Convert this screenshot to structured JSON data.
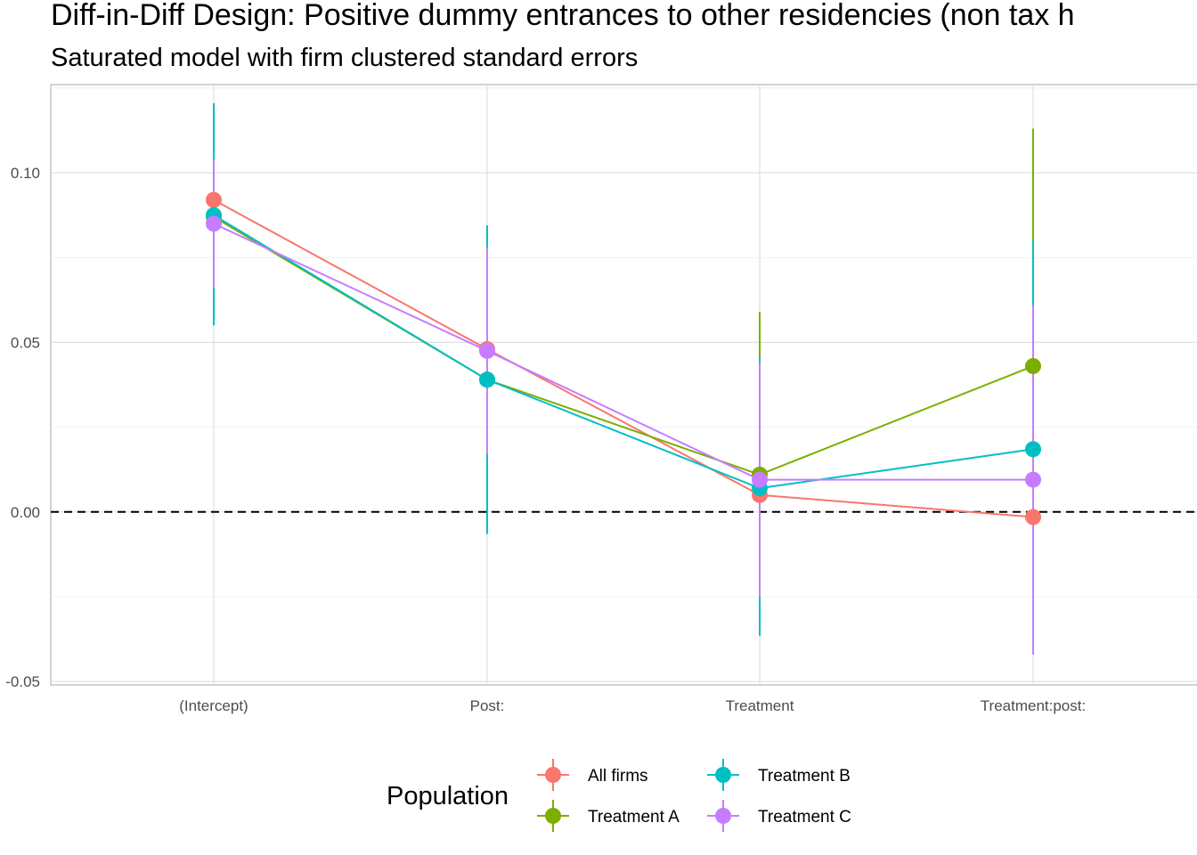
{
  "chart_data": {
    "type": "line",
    "title": "Diff-in-Diff Design: Positive dummy entrances to other residencies (non tax h",
    "subtitle": "Saturated model with firm clustered standard errors",
    "xlabel": "",
    "ylabel": "",
    "categories": [
      "(Intercept)",
      "Post:",
      "Treatment",
      "Treatment:post:"
    ],
    "y_ticks": [
      -0.05,
      0.0,
      0.05,
      0.1
    ],
    "y_tick_labels": [
      "-0.05",
      "0.00",
      "0.05",
      "0.10"
    ],
    "ylim": [
      -0.051,
      0.126
    ],
    "reference_line": {
      "y": 0,
      "style": "dashed",
      "color": "#000000"
    },
    "grid": true,
    "legend": {
      "title": "Population",
      "position": "bottom"
    },
    "series": [
      {
        "name": "All firms",
        "color": "#F8766D",
        "values": [
          0.092,
          0.048,
          0.005,
          -0.0015
        ],
        "lower": [
          0.084,
          0.024,
          -0.02,
          -0.042
        ],
        "upper": [
          0.102,
          0.074,
          0.034,
          0.045
        ]
      },
      {
        "name": "Treatment A",
        "color": "#7CAE00",
        "values": [
          0.087,
          0.039,
          0.011,
          0.043
        ],
        "lower": [
          0.056,
          -0.006,
          -0.027,
          -0.027
        ],
        "upper": [
          0.12,
          0.084,
          0.059,
          0.113
        ]
      },
      {
        "name": "Treatment B",
        "color": "#00BFC4",
        "values": [
          0.0875,
          0.039,
          0.007,
          0.0185
        ],
        "lower": [
          0.055,
          -0.0065,
          -0.0365,
          -0.042
        ],
        "upper": [
          0.1205,
          0.0845,
          0.0455,
          0.08
        ]
      },
      {
        "name": "Treatment C",
        "color": "#C77CFF",
        "values": [
          0.085,
          0.0475,
          0.0095,
          0.0095
        ],
        "lower": [
          0.066,
          0.017,
          -0.025,
          -0.042
        ],
        "upper": [
          0.104,
          0.078,
          0.044,
          0.061
        ]
      }
    ]
  }
}
